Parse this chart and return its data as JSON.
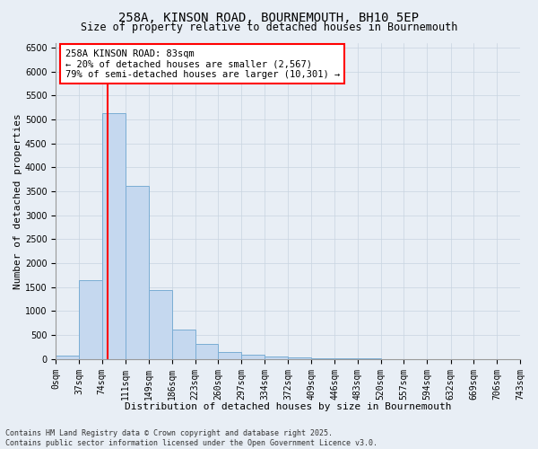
{
  "title_line1": "258A, KINSON ROAD, BOURNEMOUTH, BH10 5EP",
  "title_line2": "Size of property relative to detached houses in Bournemouth",
  "xlabel": "Distribution of detached houses by size in Bournemouth",
  "ylabel": "Number of detached properties",
  "bar_color": "#c5d8ef",
  "bar_edge_color": "#7aadd4",
  "vline_color": "red",
  "vline_x": 83,
  "annotation_title": "258A KINSON ROAD: 83sqm",
  "annotation_line1": "← 20% of detached houses are smaller (2,567)",
  "annotation_line2": "79% of semi-detached houses are larger (10,301) →",
  "footer_line1": "Contains HM Land Registry data © Crown copyright and database right 2025.",
  "footer_line2": "Contains public sector information licensed under the Open Government Licence v3.0.",
  "bin_edges": [
    0,
    37,
    74,
    111,
    149,
    186,
    223,
    260,
    297,
    334,
    372,
    409,
    446,
    483,
    520,
    557,
    594,
    632,
    669,
    706,
    743
  ],
  "bin_labels": [
    "0sqm",
    "37sqm",
    "74sqm",
    "111sqm",
    "149sqm",
    "186sqm",
    "223sqm",
    "260sqm",
    "297sqm",
    "334sqm",
    "372sqm",
    "409sqm",
    "446sqm",
    "483sqm",
    "520sqm",
    "557sqm",
    "594sqm",
    "632sqm",
    "669sqm",
    "706sqm",
    "743sqm"
  ],
  "bar_heights": [
    65,
    1650,
    5120,
    3620,
    1430,
    620,
    310,
    145,
    90,
    50,
    30,
    15,
    10,
    5,
    3,
    2,
    1,
    0,
    0,
    0
  ],
  "ylim": [
    0,
    6600
  ],
  "yticks": [
    0,
    500,
    1000,
    1500,
    2000,
    2500,
    3000,
    3500,
    4000,
    4500,
    5000,
    5500,
    6000,
    6500
  ],
  "background_color": "#e8eef5",
  "grid_color": "#c8d4e0",
  "title_fontsize": 10,
  "subtitle_fontsize": 8.5,
  "ylabel_fontsize": 8,
  "xlabel_fontsize": 8,
  "tick_fontsize": 7,
  "annot_fontsize": 7.5,
  "footer_fontsize": 6
}
